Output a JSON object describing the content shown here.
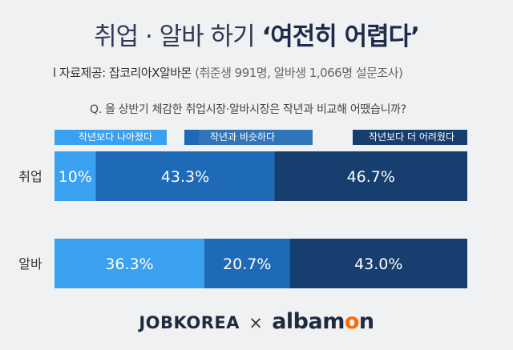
{
  "header": {
    "title_plain": "취업 · 알바 하기",
    "title_accent": "‘여전히 어렵다’",
    "source_label": "l 자료제공: 잡코리아X알바몬",
    "source_note": "(취준생 991명, 알바생 1,066명 설문조사)"
  },
  "question": "Q. 올 상반기 체감한  취업시장·알바시장은 작년과 비교해 어땠습니까?",
  "footer": {
    "brand1": "JOBKOREA",
    "separator": "×",
    "brand2_a": "albam",
    "brand2_o": "o",
    "brand2_b": "n"
  },
  "colors": {
    "light": "#3aa0f0",
    "mid": "#1f6ab7",
    "dark": "#163e6e"
  },
  "chart_data": {
    "type": "bar",
    "orientation": "horizontal",
    "stacked": true,
    "percent": true,
    "categories": [
      "취업",
      "알바"
    ],
    "series": [
      {
        "name": "작년보다 나아졌다",
        "values": [
          10,
          36.3
        ],
        "labels": [
          "10%",
          "36.3%"
        ]
      },
      {
        "name": "작년과 비슷하다",
        "values": [
          43.3,
          20.7
        ],
        "labels": [
          "43.3%",
          "20.7%"
        ]
      },
      {
        "name": "작년보다 더 어려웠다",
        "values": [
          46.7,
          43.0
        ],
        "labels": [
          "46.7%",
          "43.0%"
        ]
      }
    ],
    "xlim": [
      0,
      100
    ],
    "grid": false,
    "legend": "top"
  }
}
